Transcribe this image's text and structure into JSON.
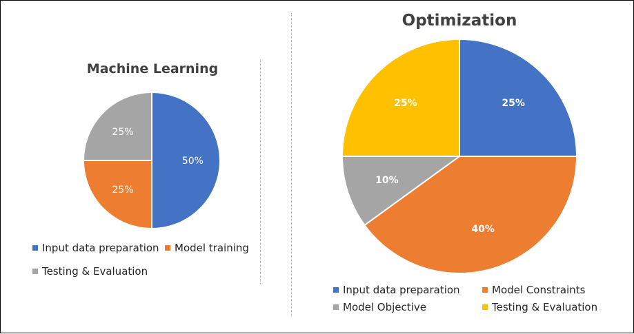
{
  "chart_data": [
    {
      "type": "pie",
      "title": "Machine Learning",
      "categories": [
        "Input data preparation",
        "Model training",
        "Testing & Evaluation"
      ],
      "values": [
        50,
        25,
        25
      ],
      "labels": [
        "50%",
        "25%",
        "25%"
      ],
      "colors": [
        "#4472c4",
        "#ed7d31",
        "#a5a5a5"
      ],
      "label_color": "#ffffff",
      "legend_placement": "bottom"
    },
    {
      "type": "pie",
      "title": "Optimization",
      "categories": [
        "Input data preparation",
        "Model Constraints",
        "Model Objective",
        "Testing & Evaluation"
      ],
      "values": [
        25,
        40,
        10,
        25
      ],
      "labels": [
        "25%",
        "40%",
        "10%",
        "25%"
      ],
      "colors": [
        "#4472c4",
        "#ed7d31",
        "#a5a5a5",
        "#ffc000"
      ],
      "label_color": "#ffffff",
      "legend_placement": "bottom"
    }
  ]
}
